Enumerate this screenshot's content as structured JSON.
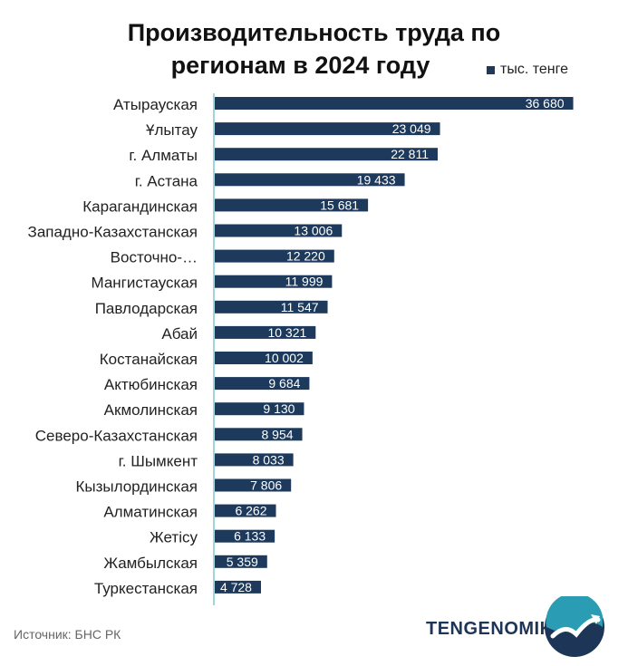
{
  "title_line1": "Производительность труда по",
  "title_line2": "регионам в 2024 году",
  "legend_label": "тыс. тенге",
  "source": "Источник: БНС РК",
  "brand": "TENGENOMIKA",
  "colors": {
    "bar": "#1d3a5c",
    "axis": "#7fc7d6",
    "label": "#222222",
    "value": "#ffffff"
  },
  "chart_data": {
    "type": "bar",
    "orientation": "horizontal",
    "categories": [
      "Атырауская",
      "Ұлытау",
      "г. Алматы",
      "г. Астана",
      "Карагандинская",
      "Западно-Казахстанская",
      "Восточно-…",
      "Мангистауская",
      "Павлодарская",
      "Абай",
      "Костанайская",
      "Актюбинская",
      "Акмолинская",
      "Северо-Казахстанская",
      "г. Шымкент",
      "Кызылординская",
      "Алматинская",
      "Жетісу",
      "Жамбылская",
      "Туркестанская"
    ],
    "values": [
      36680,
      23049,
      22811,
      19433,
      15681,
      13006,
      12220,
      11999,
      11547,
      10321,
      10002,
      9684,
      9130,
      8954,
      8033,
      7806,
      6262,
      6133,
      5359,
      4728
    ],
    "value_labels": [
      "36 680",
      "23 049",
      "22 811",
      "19 433",
      "15 681",
      "13 006",
      "12 220",
      "11 999",
      "11 547",
      "10 321",
      "10 002",
      "9 684",
      "9 130",
      "8 954",
      "8 033",
      "7 806",
      "6 262",
      "6 133",
      "5 359",
      "4 728"
    ],
    "series": [
      {
        "name": "тыс. тенге"
      }
    ],
    "xlim": [
      0,
      37000
    ],
    "grid": false,
    "legend": "top-right"
  }
}
